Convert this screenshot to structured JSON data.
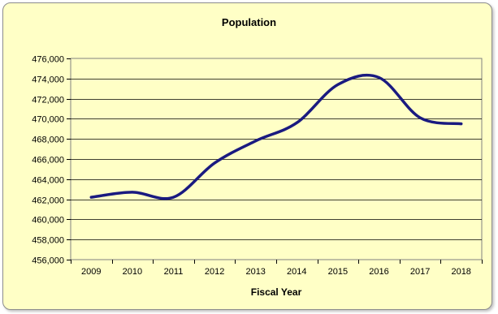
{
  "chart_data": {
    "type": "line",
    "title": "Population",
    "xlabel": "Fiscal Year",
    "ylabel": "",
    "categories": [
      "2009",
      "2010",
      "2011",
      "2012",
      "2013",
      "2014",
      "2015",
      "2016",
      "2017",
      "2018"
    ],
    "series": [
      {
        "values": [
          462200,
          462700,
          462200,
          465600,
          467800,
          469600,
          473400,
          474100,
          470100,
          469500
        ]
      }
    ],
    "ylim": [
      456000,
      476000
    ],
    "yticks": [
      456000,
      458000,
      460000,
      462000,
      464000,
      466000,
      468000,
      470000,
      472000,
      474000,
      476000
    ],
    "grid": true,
    "legend": "none",
    "colors": {
      "line": "#1a1a80",
      "background": "#ffffc6",
      "plot_border": "#808080",
      "grid": "#000000"
    }
  }
}
